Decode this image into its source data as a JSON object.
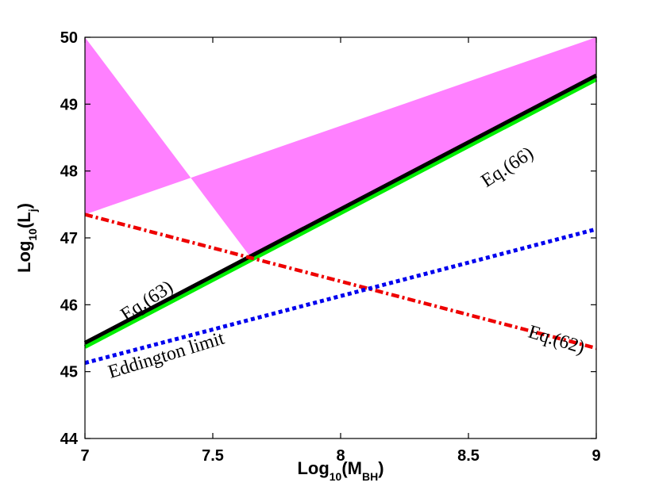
{
  "chart_data": {
    "type": "line",
    "xlabel": {
      "main": "Log",
      "sub1": "10",
      "mid": "(M",
      "sub2": "BH",
      "end": ")"
    },
    "ylabel": {
      "main": "Log",
      "sub1": "10",
      "mid": "(L",
      "sub2": "j",
      "end": ")"
    },
    "xlim": [
      7,
      9
    ],
    "ylim": [
      44,
      50
    ],
    "xticks": [
      "7",
      "7.5",
      "8",
      "8.5",
      "9"
    ],
    "yticks": [
      "44",
      "45",
      "46",
      "47",
      "48",
      "49",
      "50"
    ],
    "grid": false,
    "series": [
      {
        "key": "eq63",
        "color": "#000000",
        "style": "solid",
        "x": [
          7,
          9
        ],
        "y": [
          45.43,
          49.43
        ]
      },
      {
        "key": "eq66",
        "color": "#00ee00",
        "style": "solid",
        "x": [
          7,
          9
        ],
        "y": [
          45.37,
          49.37
        ]
      },
      {
        "key": "eq62",
        "color": "#ee0000",
        "style": "dashdot",
        "x": [
          7,
          9
        ],
        "y": [
          47.35,
          45.35
        ]
      },
      {
        "key": "eddington",
        "color": "#0000ee",
        "style": "dotted",
        "x": [
          7,
          9
        ],
        "y": [
          45.13,
          47.13
        ]
      }
    ],
    "shaded_region": {
      "color": "#ff80ff",
      "x": [
        7,
        7,
        9,
        9,
        7.65
      ],
      "y": [
        50,
        47.35,
        50,
        49.43,
        46.7
      ]
    },
    "annotations": [
      {
        "key": "eq63",
        "text": "Eq.(63)",
        "x": 7.16,
        "y": 45.75,
        "angle": -33
      },
      {
        "key": "eq66",
        "text": "Eq.(66)",
        "x": 8.57,
        "y": 47.75,
        "angle": -33
      },
      {
        "key": "eq62",
        "text": "Eq.(62)",
        "x": 8.73,
        "y": 45.52,
        "angle": 17
      },
      {
        "key": "eddington",
        "text": "Eddington limit",
        "x": 7.1,
        "y": 44.9,
        "angle": -17
      }
    ]
  }
}
